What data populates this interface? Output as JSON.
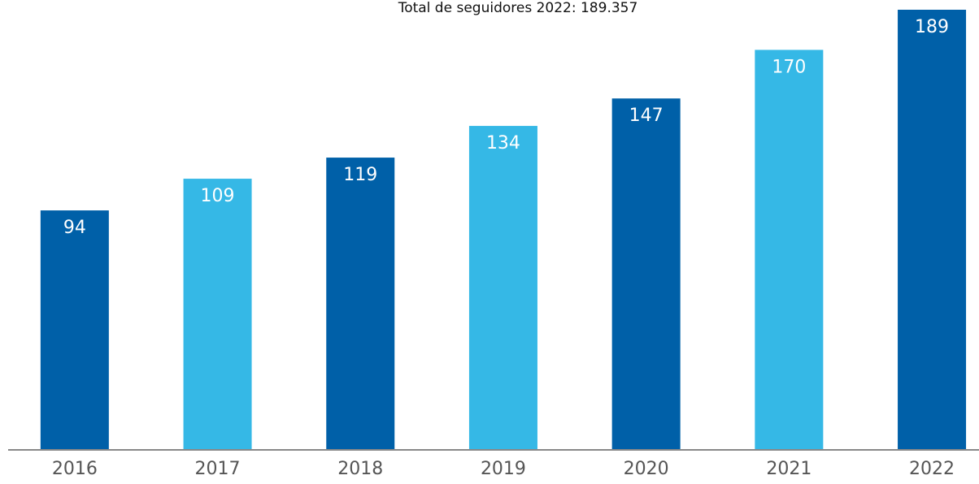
{
  "chart_data": {
    "type": "bar",
    "title": "Total de seguidores 2022: 189.357",
    "categories": [
      "2016",
      "2017",
      "2018",
      "2019",
      "2020",
      "2021",
      "2022"
    ],
    "values": [
      94,
      109,
      119,
      134,
      147,
      170,
      189
    ],
    "colors": [
      "#0060a8",
      "#35b8e6",
      "#0060a8",
      "#35b8e6",
      "#0060a8",
      "#35b8e6",
      "#0060a8"
    ],
    "ylim": [
      -19,
      189
    ]
  }
}
